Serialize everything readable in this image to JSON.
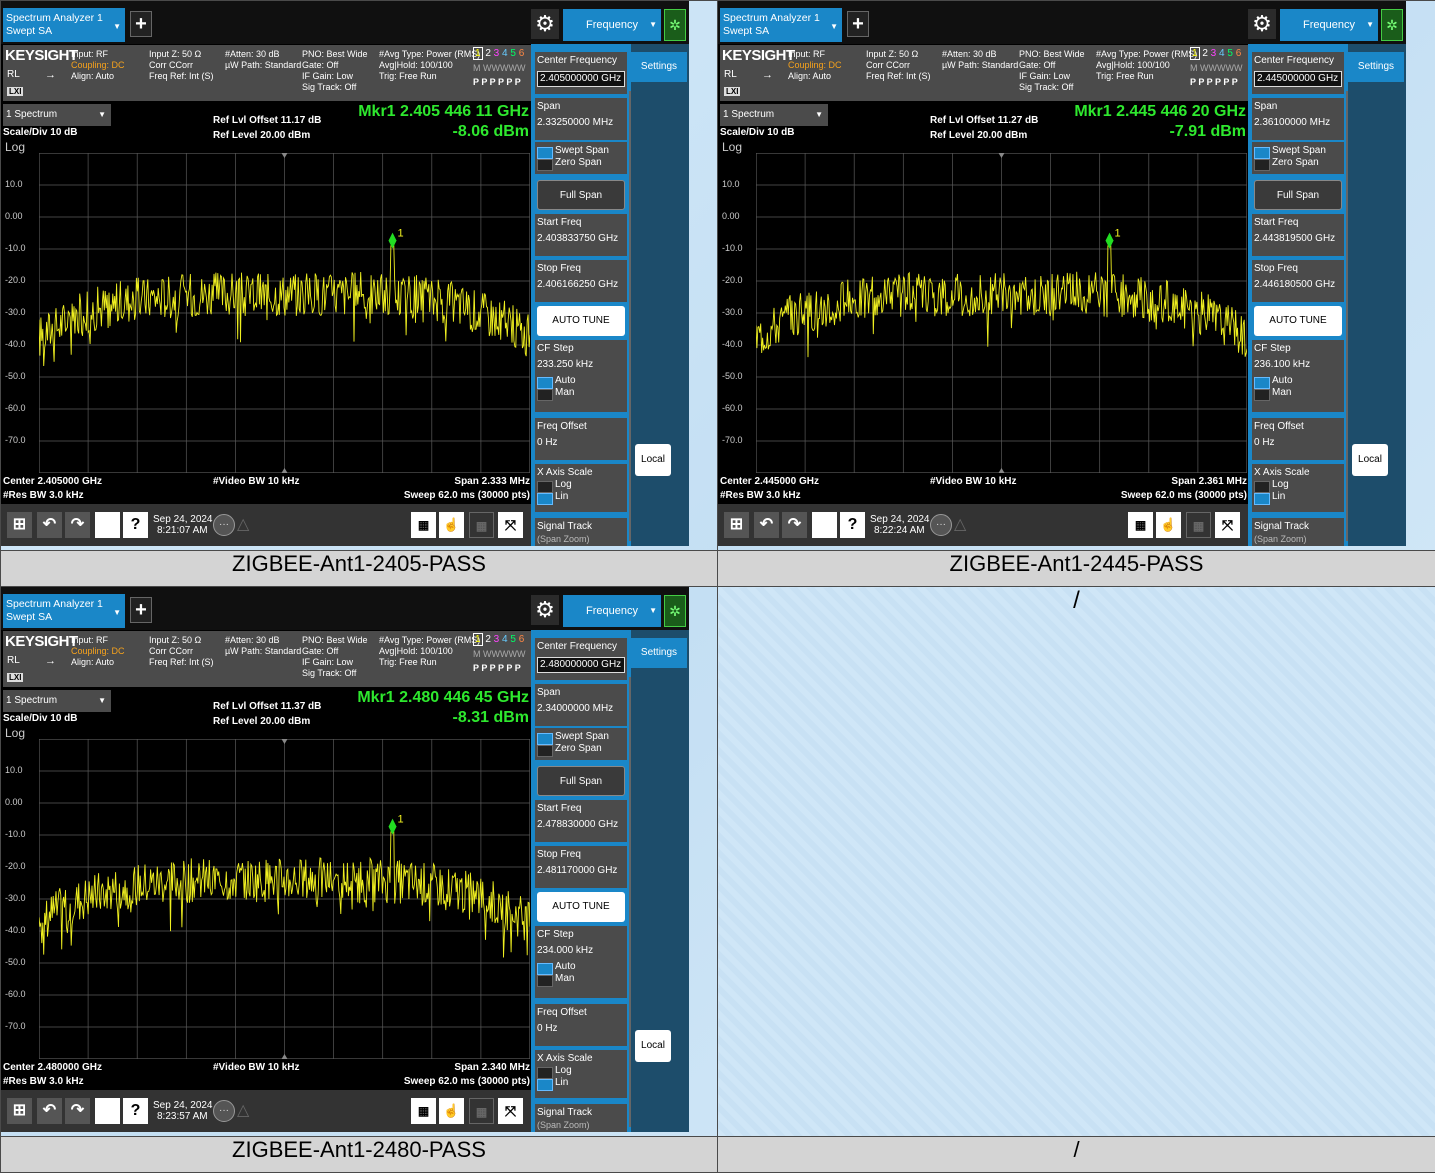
{
  "common": {
    "app_tab_line1": "Spectrum Analyzer 1",
    "app_tab_line2": "Swept SA",
    "plus": "+",
    "frequency_menu": "Frequency",
    "brand": "KEYSIGHT",
    "rl": "RL",
    "lxi": "LXI",
    "input_rf": "Input: RF",
    "coupling": "Coupling: DC",
    "align": "Align: Auto",
    "input_z": "Input Z: 50 Ω",
    "corr": "Corr CCorr",
    "freq_ref": "Freq Ref: Int (S)",
    "atten": "#Atten: 30 dB",
    "uw_path": "µW Path: Standard",
    "pno": "PNO: Best Wide",
    "gate": "Gate: Off",
    "if_gain": "IF Gain: Low",
    "sig_track": "Sig Track: Off",
    "avg_type": "#Avg Type: Power (RMS)",
    "avg_hold": "Avg|Hold: 100/100",
    "trig": "Trig: Free Run",
    "trace_nums": "1 2 3 4 5 6",
    "trace_types": "M WWWWW",
    "trace_dets": "P P P P P P",
    "mode": "1 Spectrum",
    "scale_div": "Scale/Div 10 dB",
    "log": "Log",
    "ref_level": "Ref Level 20.00 dBm",
    "video_bw": "#Video BW 10 kHz",
    "res_bw": "#Res BW 3.0 kHz",
    "sweep": "Sweep 62.0 ms (30000 pts)",
    "y_ticks": [
      "10.0",
      "0.00",
      "-10.0",
      "-20.0",
      "-30.0",
      "-40.0",
      "-50.0",
      "-60.0",
      "-70.0"
    ],
    "date": "Sep 24, 2024",
    "panel": {
      "center_freq": "Center Frequency",
      "span": "Span",
      "swept_span": "Swept Span",
      "zero_span": "Zero Span",
      "full_span": "Full Span",
      "start_freq": "Start Freq",
      "stop_freq": "Stop Freq",
      "auto_tune": "AUTO TUNE",
      "cf_step": "CF Step",
      "auto": "Auto",
      "man": "Man",
      "freq_offset": "Freq Offset",
      "freq_offset_val": "0 Hz",
      "x_axis_scale": "X Axis Scale",
      "log": "Log",
      "lin": "Lin",
      "signal_track": "Signal Track",
      "span_zoom": "(Span Zoom)",
      "settings": "Settings",
      "local": "Local"
    },
    "trace_color": "#f0f020",
    "marker_color": "#22dd22",
    "accent": "#1a87c8"
  },
  "screens": [
    {
      "caption": "ZIGBEE-Ant1-2405-PASS",
      "ref_offset": "Ref Lvl Offset 11.17 dB",
      "mkr_freq": "Mkr1  2.405 446 11 GHz",
      "mkr_level": "-8.06 dBm",
      "center_label": "Center 2.405000 GHz",
      "span_label": "Span 2.333 MHz",
      "center_freq_val": "2.405000000 GHz",
      "span_val": "2.33250000 MHz",
      "start_freq_val": "2.403833750 GHz",
      "stop_freq_val": "2.406166250 GHz",
      "cf_step_val": "233.250 kHz",
      "time": "8:21:07 AM"
    },
    {
      "caption": "ZIGBEE-Ant1-2445-PASS",
      "ref_offset": "Ref Lvl Offset 11.27 dB",
      "mkr_freq": "Mkr1  2.445 446 20 GHz",
      "mkr_level": "-7.91 dBm",
      "center_label": "Center 2.445000 GHz",
      "span_label": "Span 2.361 MHz",
      "center_freq_val": "2.445000000 GHz",
      "span_val": "2.36100000 MHz",
      "start_freq_val": "2.443819500 GHz",
      "stop_freq_val": "2.446180500 GHz",
      "cf_step_val": "236.100 kHz",
      "time": "8:22:24 AM"
    },
    {
      "caption": "ZIGBEE-Ant1-2480-PASS",
      "ref_offset": "Ref Lvl Offset 11.37 dB",
      "mkr_freq": "Mkr1  2.480 446 45 GHz",
      "mkr_level": "-8.31 dBm",
      "center_label": "Center 2.480000 GHz",
      "span_label": "Span 2.340 MHz",
      "center_freq_val": "2.480000000 GHz",
      "span_val": "2.34000000 MHz",
      "start_freq_val": "2.478830000 GHz",
      "stop_freq_val": "2.481170000 GHz",
      "cf_step_val": "234.000 kHz",
      "time": "8:23:57 AM"
    }
  ],
  "empty_cell": {
    "content": "/",
    "caption": "/"
  }
}
